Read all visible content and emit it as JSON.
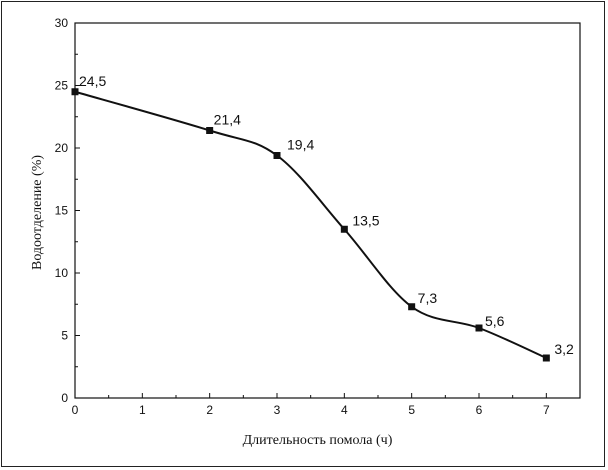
{
  "chart_data": {
    "type": "line",
    "title": "",
    "xlabel": "Длительность помола (ч)",
    "ylabel": "Водоотделение (%)",
    "xlim": [
      0,
      7.5
    ],
    "ylim": [
      0,
      30
    ],
    "x_ticks": [
      0,
      1,
      2,
      3,
      4,
      5,
      6,
      7
    ],
    "y_ticks": [
      0,
      5,
      10,
      15,
      20,
      25,
      30
    ],
    "grid": false,
    "series": [
      {
        "x": [
          0,
          2,
          3,
          4,
          5,
          6,
          7
        ],
        "y": [
          24.5,
          21.4,
          19.4,
          13.5,
          7.3,
          5.6,
          3.2
        ],
        "labels": [
          "24,5",
          "21,4",
          "19,4",
          "13,5",
          "7,3",
          "5,6",
          "3,2"
        ],
        "marker": "square",
        "color": "#111111"
      }
    ]
  }
}
